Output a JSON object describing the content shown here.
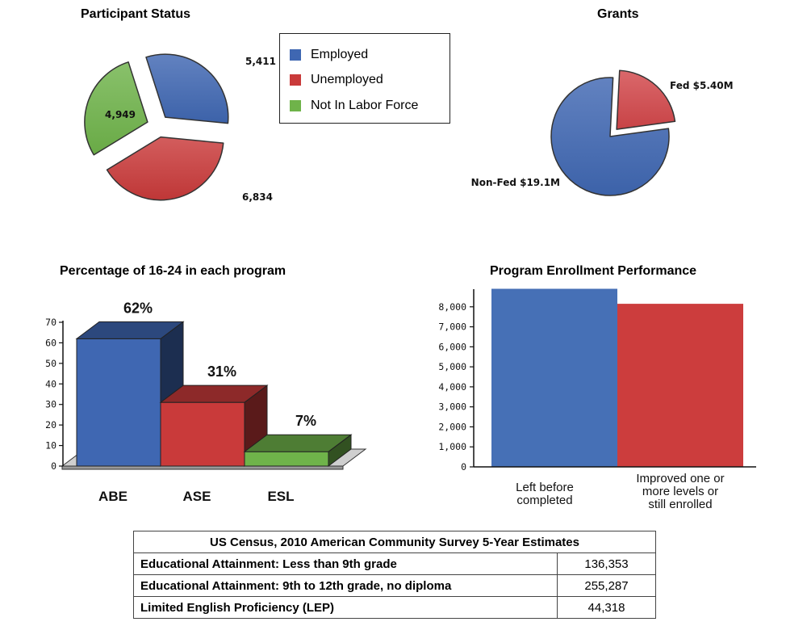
{
  "charts": {
    "participant": {
      "title": "Participant Status"
    },
    "grants": {
      "title": "Grants"
    },
    "youth": {
      "title": "Percentage of 16-24 in each program"
    },
    "enrollment": {
      "title": "Program Enrollment Performance"
    }
  },
  "legend": {
    "items": [
      {
        "label": "Employed",
        "color": "#3f67b2"
      },
      {
        "label": "Unemployed",
        "color": "#c93a3a"
      },
      {
        "label": "Not In Labor Force",
        "color": "#6fb34a"
      }
    ]
  },
  "chart_data": [
    {
      "type": "pie",
      "title": "Participant Status",
      "slices": [
        {
          "name": "Employed",
          "value": 5411,
          "label": "5,411",
          "color": "#3f67b2"
        },
        {
          "name": "Unemployed",
          "value": 6834,
          "label": "6,834",
          "color": "#c93a3a"
        },
        {
          "name": "Not In Labor Force",
          "value": 4949,
          "label": "4,949",
          "color": "#6fb34a"
        }
      ],
      "legend": "top-right"
    },
    {
      "type": "pie",
      "title": "Grants",
      "slices": [
        {
          "name": "Fed",
          "value": 5.4,
          "label": "Fed $5.40M",
          "color": "#d2474a"
        },
        {
          "name": "Non-Fed",
          "value": 19.1,
          "label": "Non-Fed $19.1M",
          "color": "#3f67b2"
        }
      ]
    },
    {
      "type": "bar",
      "title": "Percentage of 16-24 in each program",
      "categories": [
        "ABE",
        "ASE",
        "ESL"
      ],
      "values": [
        62,
        31,
        7
      ],
      "data_labels": [
        "62%",
        "31%",
        "7%"
      ],
      "colors": [
        "#3f67b2",
        "#c93a3a",
        "#6fb34a"
      ],
      "ylim": [
        0,
        70
      ],
      "yticks": [
        0,
        10,
        20,
        30,
        40,
        50,
        60,
        70
      ],
      "grid": false
    },
    {
      "type": "bar",
      "title": "Program Enrollment Performance",
      "categories": [
        "Left before completed",
        "Improved one or more levels or still enrolled"
      ],
      "category_lines": [
        [
          "Left before",
          "completed"
        ],
        [
          "Improved one or",
          "more levels or",
          "still enrolled"
        ]
      ],
      "values": [
        8900,
        8150
      ],
      "colors": [
        "#4670b6",
        "#cc3d3d"
      ],
      "ylim": [
        0,
        8800
      ],
      "yticks": [
        0,
        1000,
        2000,
        3000,
        4000,
        5000,
        6000,
        7000,
        8000
      ],
      "ytick_labels": [
        "0",
        "1,000",
        "2,000",
        "3,000",
        "4,000",
        "5,000",
        "6,000",
        "7,000",
        "8,000"
      ],
      "grid": false
    }
  ],
  "table": {
    "title": "US Census, 2010 American Community Survey 5-Year Estimates",
    "rows": [
      {
        "label": "Educational Attainment: Less than 9th grade",
        "value": "136,353"
      },
      {
        "label": "Educational Attainment: 9th to 12th grade, no diploma",
        "value": "255,287"
      },
      {
        "label": "Limited English Proficiency (LEP)",
        "value": "44,318"
      }
    ]
  }
}
